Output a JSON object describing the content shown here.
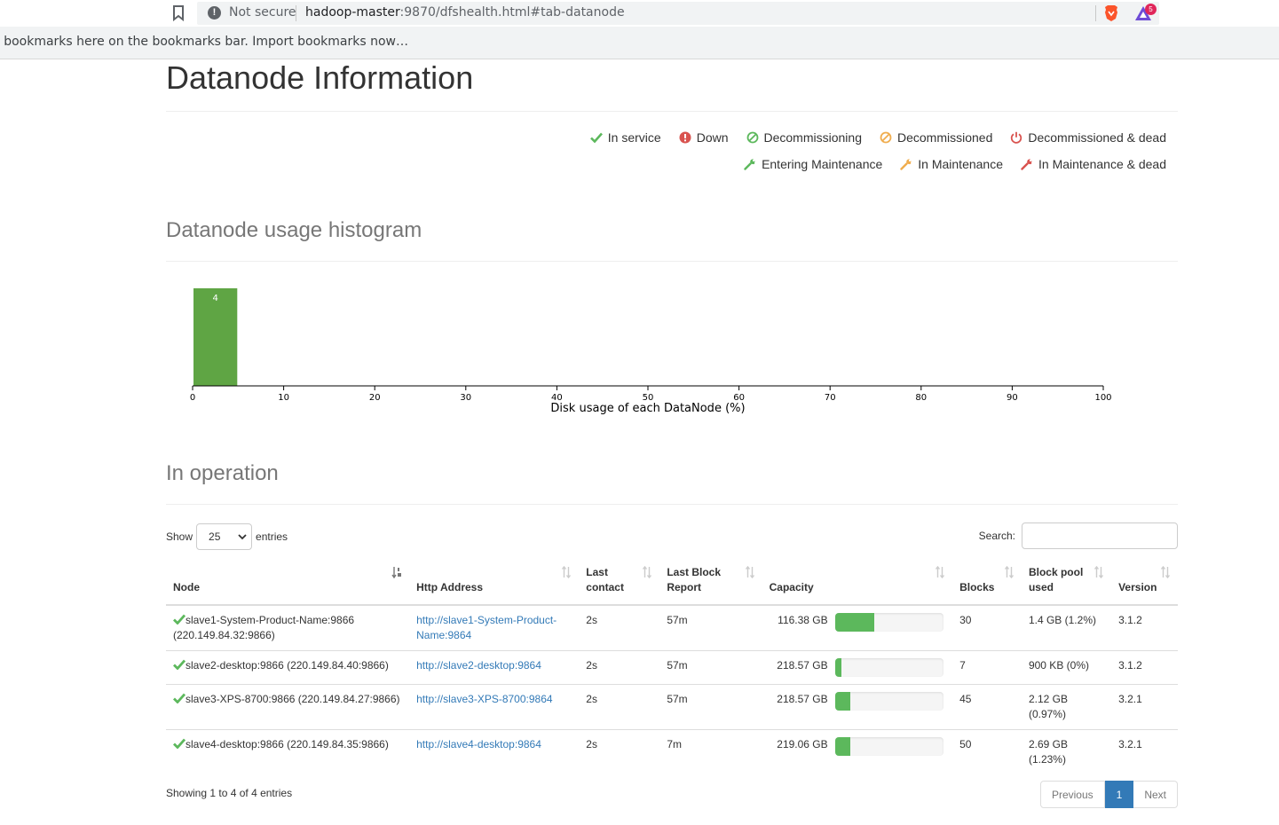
{
  "browser": {
    "security_label": "Not secure",
    "url_host": "hadoop-master",
    "url_path": ":9870/dfshealth.html#tab-datanode",
    "rewards_badge": "5",
    "bookmarks_bar_text": "r bookmarks here on the bookmarks bar. Import bookmarks now…"
  },
  "page": {
    "title": "Datanode Information"
  },
  "legend": {
    "row1": [
      {
        "label": "In service",
        "icon": "check-icon",
        "color": "#5cb85c"
      },
      {
        "label": "Down",
        "icon": "exclamation-circle-icon",
        "color": "#d9534f"
      },
      {
        "label": "Decommissioning",
        "icon": "ban-icon",
        "color": "#5cb85c"
      },
      {
        "label": "Decommissioned",
        "icon": "ban-icon",
        "color": "#f0ad4e"
      },
      {
        "label": "Decommissioned & dead",
        "icon": "power-icon",
        "color": "#d9534f"
      }
    ],
    "row2": [
      {
        "label": "Entering Maintenance",
        "icon": "wrench-icon",
        "color": "#5cb85c"
      },
      {
        "label": "In Maintenance",
        "icon": "wrench-icon",
        "color": "#f0ad4e"
      },
      {
        "label": "In Maintenance & dead",
        "icon": "wrench-icon",
        "color": "#d9534f"
      }
    ]
  },
  "histogram": {
    "heading": "Datanode usage histogram"
  },
  "chart_data": {
    "type": "bar",
    "bins": [
      [
        0,
        5
      ]
    ],
    "values": [
      4
    ],
    "data_labels": [
      "4"
    ],
    "xlabel": "Disk usage of each DataNode (%)",
    "xlim": [
      0,
      100
    ],
    "xticks": [
      0,
      10,
      20,
      30,
      40,
      50,
      60,
      70,
      80,
      90,
      100
    ],
    "bar_color": "#5fa544"
  },
  "operation": {
    "heading": "In operation",
    "show_label": "Show",
    "page_size": "25",
    "entries_label": "entries",
    "search_label": "Search:",
    "columns": [
      {
        "line1": "",
        "line2": "Node"
      },
      {
        "line1": "",
        "line2": "Http Address"
      },
      {
        "line1": "Last",
        "line2": "contact"
      },
      {
        "line1": "Last Block",
        "line2": "Report"
      },
      {
        "line1": "",
        "line2": "Capacity"
      },
      {
        "line1": "",
        "line2": "Blocks"
      },
      {
        "line1": "Block pool",
        "line2": "used"
      },
      {
        "line1": "",
        "line2": "Version"
      }
    ],
    "rows": [
      {
        "node_line1": "slave1-System-Product-Name:9866",
        "node_line2": "(220.149.84.32:9866)",
        "http_line1": "http://slave1-System-Product-",
        "http_line2": "Name:9864",
        "last_contact": "2s",
        "last_block_report": "57m",
        "capacity": "116.38 GB",
        "capacity_used_pct": 36,
        "blocks": "30",
        "bp_line1": "1.4 GB (1.2%)",
        "bp_line2": "",
        "version": "3.1.2"
      },
      {
        "node_line1": "slave2-desktop:9866 (220.149.84.40:9866)",
        "node_line2": "",
        "http_line1": "http://slave2-desktop:9864",
        "http_line2": "",
        "last_contact": "2s",
        "last_block_report": "57m",
        "capacity": "218.57 GB",
        "capacity_used_pct": 6,
        "blocks": "7",
        "bp_line1": "900 KB (0%)",
        "bp_line2": "",
        "version": "3.1.2"
      },
      {
        "node_line1": "slave3-XPS-8700:9866 (220.149.84.27:9866)",
        "node_line2": "",
        "http_line1": "http://slave3-XPS-8700:9864",
        "http_line2": "",
        "last_contact": "2s",
        "last_block_report": "57m",
        "capacity": "218.57 GB",
        "capacity_used_pct": 14,
        "blocks": "45",
        "bp_line1": "2.12 GB",
        "bp_line2": "(0.97%)",
        "version": "3.2.1"
      },
      {
        "node_line1": "slave4-desktop:9866 (220.149.84.35:9866)",
        "node_line2": "",
        "http_line1": "http://slave4-desktop:9864",
        "http_line2": "",
        "last_contact": "2s",
        "last_block_report": "7m",
        "capacity": "219.06 GB",
        "capacity_used_pct": 14,
        "blocks": "50",
        "bp_line1": "2.69 GB",
        "bp_line2": "(1.23%)",
        "version": "3.2.1"
      }
    ],
    "showing": "Showing 1 to 4 of 4 entries",
    "pagination": {
      "previous": "Previous",
      "current": "1",
      "next": "Next"
    }
  }
}
